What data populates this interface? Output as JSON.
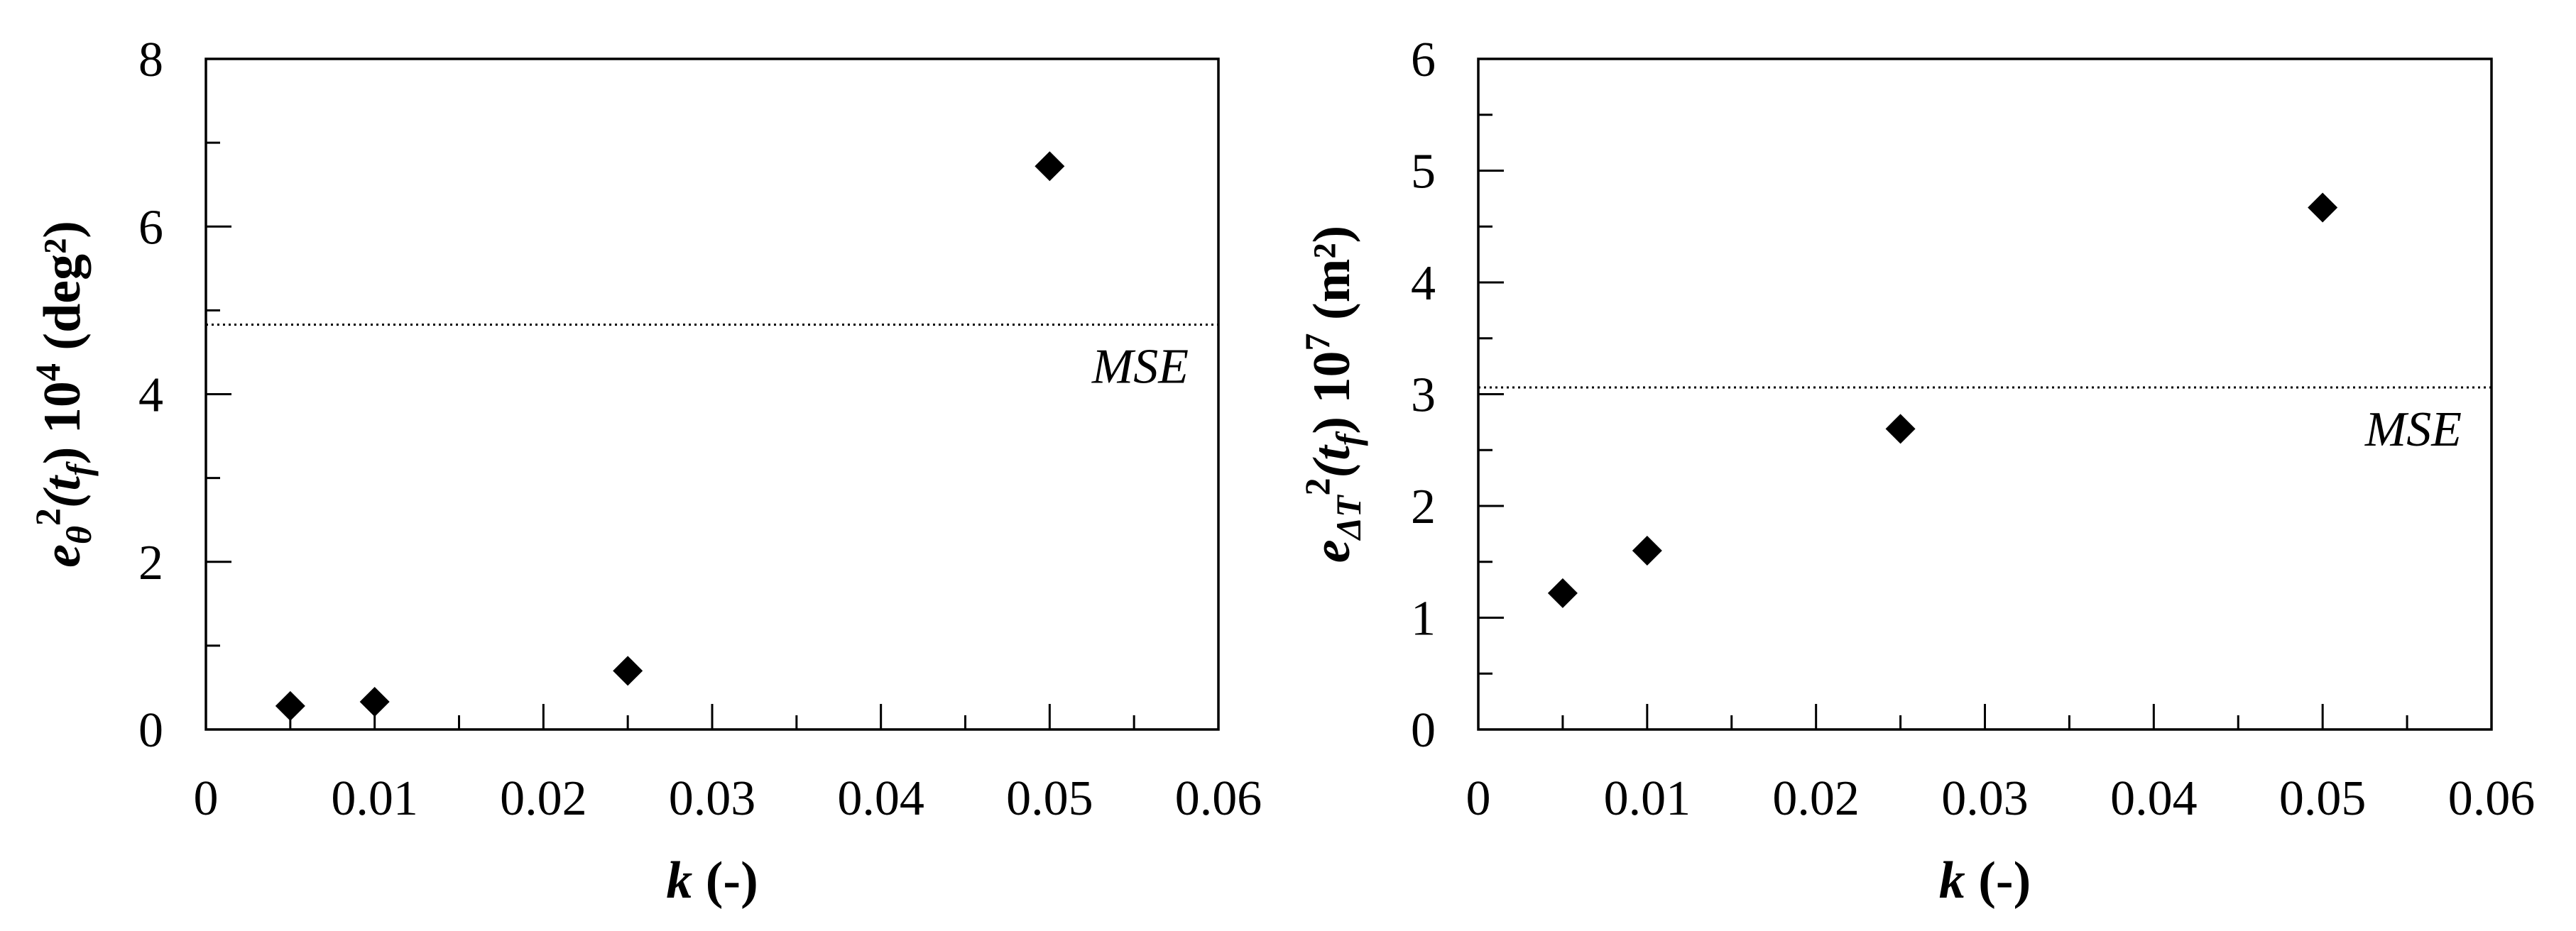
{
  "chart_data": [
    {
      "type": "scatter",
      "title": "",
      "xlabel": {
        "main": "k",
        "rest": " (-)"
      },
      "ylabel": {
        "e": "e",
        "sub": "θ",
        "mid": "2(t",
        "sub2": "f",
        "rest": ") 10",
        "sup": "4",
        "unit": " (deg²)"
      },
      "xlim": [
        0,
        0.06
      ],
      "ylim": [
        0,
        8
      ],
      "x_ticks": [
        "0",
        "0.01",
        "0.02",
        "0.03",
        "0.04",
        "0.05",
        "0.06"
      ],
      "y_ticks": [
        "0",
        "2",
        "4",
        "6",
        "8"
      ],
      "y_tick_values": [
        0,
        2,
        4,
        6,
        8
      ],
      "x_tick_values": [
        0,
        0.01,
        0.02,
        0.03,
        0.04,
        0.05,
        0.06
      ],
      "x_minor_step": 0.005,
      "y_minor_step": 1,
      "points": [
        {
          "x": 0.005,
          "y": 0.28
        },
        {
          "x": 0.01,
          "y": 0.33
        },
        {
          "x": 0.025,
          "y": 0.7
        },
        {
          "x": 0.05,
          "y": 6.72
        }
      ],
      "reference_line": {
        "label": "MSE",
        "y": 4.83,
        "style": "dotted"
      },
      "grid": false,
      "marker": "diamond"
    },
    {
      "type": "scatter",
      "title": "",
      "xlabel": {
        "main": "k",
        "rest": " (-)"
      },
      "ylabel": {
        "e": "e",
        "sub": "ΔT",
        "mid": "2(t",
        "sub2": "f",
        "rest": ") 10",
        "sup": "7",
        "unit": " (m²)"
      },
      "xlim": [
        0,
        0.06
      ],
      "ylim": [
        0,
        6
      ],
      "x_ticks": [
        "0",
        "0.01",
        "0.02",
        "0.03",
        "0.04",
        "0.05",
        "0.06"
      ],
      "y_ticks": [
        "0",
        "1",
        "2",
        "3",
        "4",
        "5",
        "6"
      ],
      "y_tick_values": [
        0,
        1,
        2,
        3,
        4,
        5,
        6
      ],
      "x_tick_values": [
        0,
        0.01,
        0.02,
        0.03,
        0.04,
        0.05,
        0.06
      ],
      "x_minor_step": 0.005,
      "y_minor_step": 0.5,
      "points": [
        {
          "x": 0.005,
          "y": 1.22
        },
        {
          "x": 0.01,
          "y": 1.6
        },
        {
          "x": 0.025,
          "y": 2.69
        },
        {
          "x": 0.05,
          "y": 4.67
        }
      ],
      "reference_line": {
        "label": "MSE",
        "y": 3.06,
        "style": "dotted"
      },
      "grid": false,
      "marker": "diamond"
    }
  ]
}
